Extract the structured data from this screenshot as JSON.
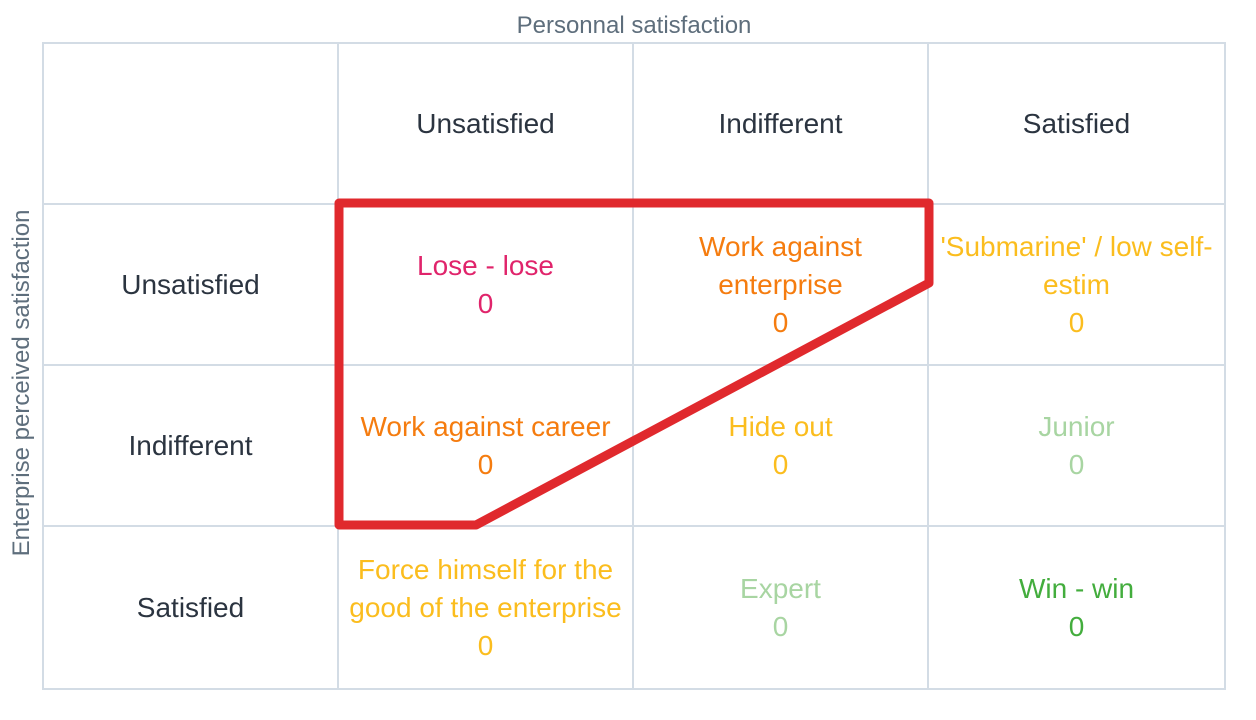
{
  "axes": {
    "x_title": "Personnal satisfaction",
    "y_title": "Enterprise perceived satisfaction"
  },
  "columns": [
    "Unsatisfied",
    "Indifferent",
    "Satisfied"
  ],
  "rows": [
    {
      "label": "Unsatisfied",
      "cells": [
        {
          "label": "Lose - lose",
          "count": "0",
          "color": "#e0246b"
        },
        {
          "label": "Work against enterprise",
          "count": "0",
          "color": "#f57c0f"
        },
        {
          "label": "'Submarine' / low self-estim",
          "count": "0",
          "color": "#fbbd1e"
        }
      ]
    },
    {
      "label": "Indifferent",
      "cells": [
        {
          "label": "Work against career",
          "count": "0",
          "color": "#f57c0f"
        },
        {
          "label": "Hide out",
          "count": "0",
          "color": "#fbbd1e"
        },
        {
          "label": "Junior",
          "count": "0",
          "color": "#a8d5a2"
        }
      ]
    },
    {
      "label": "Satisfied",
      "cells": [
        {
          "label": "Force himself for the good of the enterprise",
          "count": "0",
          "color": "#fbbd1e"
        },
        {
          "label": "Expert",
          "count": "0",
          "color": "#a8d5a2"
        },
        {
          "label": "Win - win",
          "count": "0",
          "color": "#43ad3d"
        }
      ]
    }
  ],
  "annotation": {
    "shape": "outline",
    "color": "#e0292d",
    "encloses": [
      "Lose - lose",
      "Work against enterprise",
      "Work against career"
    ]
  }
}
